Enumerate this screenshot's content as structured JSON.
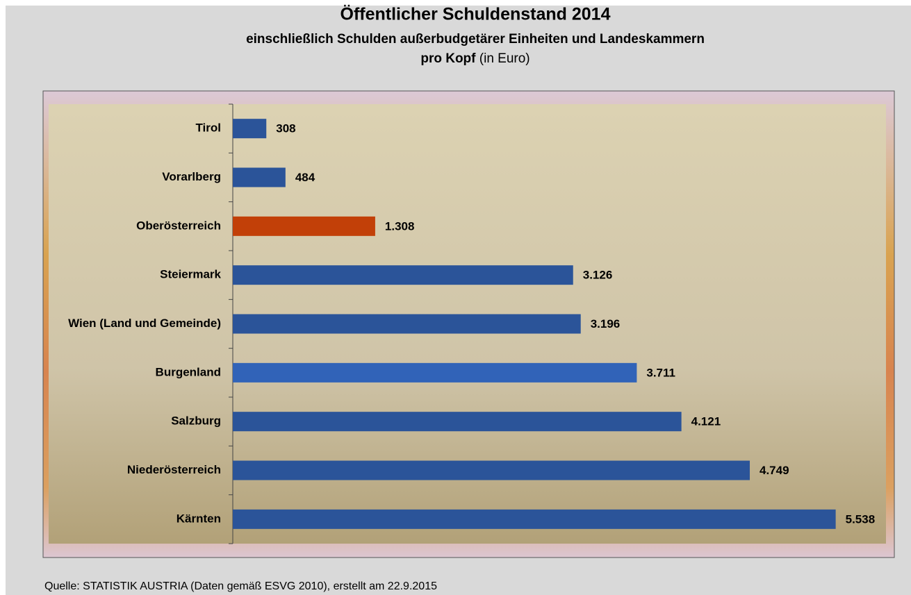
{
  "chart_data": {
    "type": "bar",
    "orientation": "horizontal",
    "title": "Öffentlicher Schuldenstand 2014",
    "subtitle": "einschließlich Schulden außerbudgetärer Einheiten und Landeskammern",
    "subtitle_bold": "pro Kopf",
    "subtitle_unit": "(in Euro)",
    "source": "Quelle: STATISTIK AUSTRIA (Daten gemäß ESVG 2010), erstellt am 22.9.2015",
    "categories": [
      "Tirol",
      "Vorarlberg",
      "Oberösterreich",
      "Steiermark",
      "Wien (Land und Gemeinde)",
      "Burgenland",
      "Salzburg",
      "Niederösterreich",
      "Kärnten"
    ],
    "values": [
      308,
      484,
      1308,
      3126,
      3196,
      3711,
      4121,
      4749,
      5538
    ],
    "value_labels": [
      "308",
      "484",
      "1.308",
      "3.126",
      "3.196",
      "3.711",
      "4.121",
      "4.749",
      "5.538"
    ],
    "colors": [
      "#2b5499",
      "#2b5499",
      "#c24008",
      "#2b5499",
      "#2b5499",
      "#3163b8",
      "#2b5499",
      "#2b5499",
      "#2b5499"
    ],
    "xlim": [
      0,
      6000
    ]
  }
}
